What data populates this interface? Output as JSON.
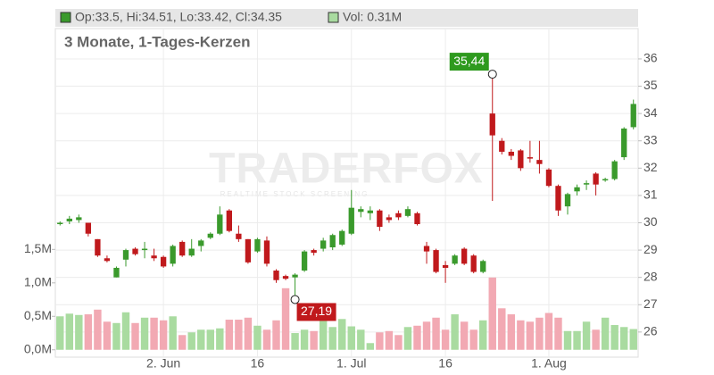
{
  "chart_data": {
    "type": "candlestick",
    "title": "3 Monate, 1-Tages-Kerzen",
    "legend": {
      "ohlc": "Op:33.5, Hi:34.51, Lo:33.42, Cl:34.35",
      "volume": "Vol: 0.31M",
      "ohlc_color": "#3a9a2c",
      "volume_color": "#a9dba0"
    },
    "watermark": {
      "title": "TRADERFOX",
      "subtitle": "REALTIME STOCK SCREENING"
    },
    "categories": [
      null,
      null,
      null,
      null,
      null,
      null,
      null,
      null,
      null,
      null,
      null,
      "2. Jun",
      null,
      null,
      null,
      null,
      null,
      null,
      null,
      null,
      null,
      "16",
      null,
      null,
      null,
      null,
      null,
      null,
      null,
      null,
      null,
      "1. Jul",
      null,
      null,
      null,
      null,
      null,
      null,
      null,
      null,
      null,
      "16",
      null,
      null,
      null,
      null,
      null,
      null,
      null,
      null,
      null,
      null,
      "1. Aug",
      null,
      null,
      null,
      null,
      null,
      null,
      null,
      null,
      null
    ],
    "open": [
      29.95,
      30.05,
      30.1,
      30.0,
      29.4,
      28.7,
      28.0,
      28.65,
      29.05,
      29.0,
      28.8,
      28.75,
      28.5,
      29.3,
      28.8,
      29.15,
      29.45,
      29.6,
      30.45,
      29.6,
      29.4,
      28.95,
      29.35,
      28.25,
      28.05,
      28.0,
      28.25,
      29.0,
      29.05,
      29.1,
      29.2,
      29.6,
      30.4,
      30.35,
      30.45,
      30.2,
      30.35,
      30.25,
      30.35,
      29.15,
      29.0,
      28.45,
      28.5,
      29.05,
      28.8,
      28.2,
      34.0,
      33.0,
      32.6,
      32.65,
      32.4,
      32.3,
      31.95,
      31.35,
      30.6,
      31.15,
      31.4,
      31.8,
      31.55,
      31.6,
      32.4,
      33.5
    ],
    "high": [
      30.05,
      30.25,
      30.3,
      30.0,
      29.4,
      28.8,
      28.4,
      29.05,
      29.1,
      29.3,
      29.05,
      28.8,
      29.2,
      29.35,
      29.4,
      29.4,
      29.65,
      30.6,
      30.5,
      29.9,
      29.4,
      29.45,
      29.5,
      28.3,
      28.1,
      28.15,
      29.0,
      29.05,
      29.45,
      29.6,
      29.75,
      31.2,
      30.6,
      30.6,
      30.5,
      30.3,
      30.45,
      30.6,
      30.4,
      29.3,
      29.05,
      28.6,
      28.85,
      29.1,
      28.85,
      28.65,
      35.44,
      33.1,
      32.7,
      32.7,
      33.0,
      33.0,
      32.0,
      31.4,
      31.1,
      31.4,
      31.55,
      31.85,
      31.65,
      32.3,
      33.5,
      34.51
    ],
    "low": [
      29.9,
      29.95,
      30.0,
      29.5,
      28.75,
      28.55,
      28.0,
      28.4,
      28.8,
      28.7,
      28.6,
      28.35,
      28.4,
      28.75,
      28.75,
      28.95,
      29.4,
      29.55,
      29.65,
      29.3,
      28.5,
      28.9,
      28.4,
      27.8,
      27.9,
      27.19,
      28.2,
      28.8,
      28.95,
      29.0,
      29.15,
      29.55,
      30.2,
      30.1,
      29.7,
      30.0,
      30.1,
      30.2,
      29.9,
      28.5,
      28.15,
      27.8,
      28.45,
      28.45,
      28.15,
      28.15,
      30.8,
      32.5,
      32.3,
      31.9,
      32.2,
      31.8,
      31.3,
      30.25,
      30.3,
      31.0,
      31.2,
      31.0,
      31.5,
      31.55,
      32.3,
      33.42
    ],
    "close": [
      30.0,
      30.15,
      30.2,
      29.6,
      28.8,
      28.6,
      28.35,
      29.0,
      28.85,
      29.05,
      28.7,
      28.4,
      29.15,
      28.8,
      29.05,
      29.35,
      29.6,
      30.3,
      29.7,
      29.4,
      28.55,
      29.4,
      28.5,
      27.9,
      27.95,
      28.1,
      28.95,
      28.9,
      29.35,
      29.55,
      29.7,
      30.55,
      30.5,
      30.45,
      29.85,
      30.1,
      30.2,
      30.5,
      29.95,
      28.95,
      28.2,
      28.35,
      28.8,
      28.5,
      28.2,
      28.6,
      33.2,
      32.6,
      32.45,
      32.0,
      32.35,
      32.15,
      31.35,
      30.45,
      31.05,
      31.3,
      31.45,
      31.4,
      31.6,
      32.25,
      33.45,
      34.35
    ],
    "volume": [
      0.5,
      0.54,
      0.52,
      0.53,
      0.6,
      0.42,
      0.4,
      0.56,
      0.4,
      0.48,
      0.48,
      0.44,
      0.5,
      0.22,
      0.26,
      0.3,
      0.3,
      0.32,
      0.45,
      0.45,
      0.48,
      0.36,
      0.3,
      0.44,
      0.92,
      0.25,
      0.3,
      0.28,
      0.44,
      0.34,
      0.46,
      0.35,
      0.3,
      0.1,
      0.26,
      0.28,
      0.22,
      0.34,
      0.36,
      0.42,
      0.48,
      0.3,
      0.53,
      0.42,
      0.3,
      0.44,
      1.08,
      0.62,
      0.53,
      0.44,
      0.42,
      0.48,
      0.55,
      0.48,
      0.28,
      0.28,
      0.42,
      0.3,
      0.48,
      0.37,
      0.34,
      0.31
    ],
    "up_color": "#3a9a2c",
    "down_color": "#c0191c",
    "volume_up_color": "#a9dba0",
    "volume_down_color": "#f2a9b3",
    "ylim": [
      25.08,
      37.11
    ],
    "yticks": [
      26,
      27,
      28,
      29,
      30,
      31,
      32,
      33,
      34,
      35,
      36
    ],
    "y2lim": [
      -0.11,
      4.8
    ],
    "y2ticks": [
      {
        "value": 0,
        "label": "0,0M"
      },
      {
        "value": 0.5,
        "label": "0,5M"
      },
      {
        "value": 1.0,
        "label": "1,0M"
      },
      {
        "value": 1.5,
        "label": "1,5M"
      }
    ],
    "annotations": [
      {
        "value": 35.44,
        "label": "35,44",
        "color": "#2e9a1e"
      },
      {
        "value": 27.19,
        "label": "27,19",
        "color": "#c0191c"
      }
    ],
    "grid": true
  }
}
